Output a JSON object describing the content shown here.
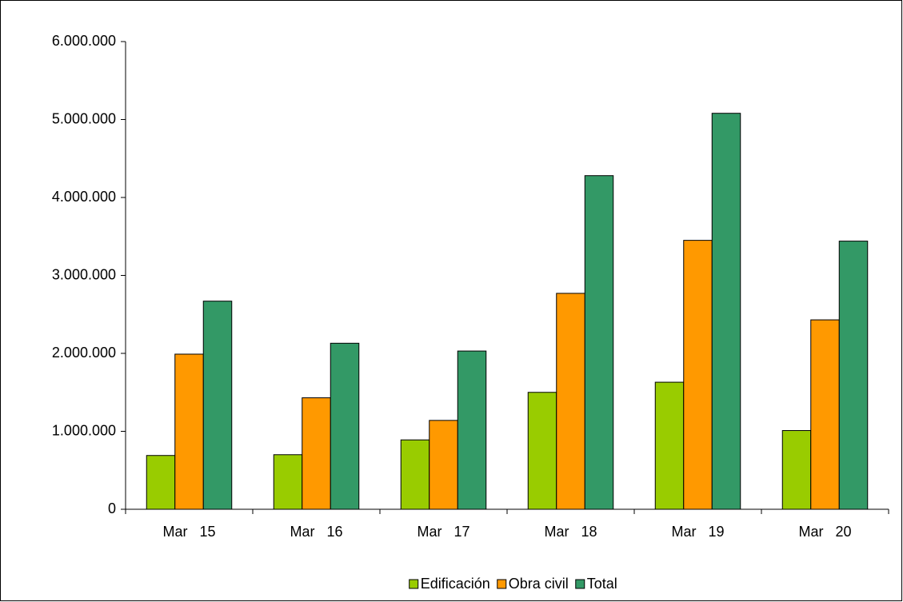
{
  "chart_data": {
    "type": "bar",
    "categories": [
      "Mar   15",
      "Mar   16",
      "Mar   17",
      "Mar   18",
      "Mar   19",
      "Mar   20"
    ],
    "series": [
      {
        "name": "Edificación",
        "color": "#99cc00",
        "values": [
          690000,
          700000,
          890000,
          1500000,
          1630000,
          1010000
        ]
      },
      {
        "name": "Obra civil",
        "color": "#ff9900",
        "values": [
          1990000,
          1430000,
          1140000,
          2770000,
          3450000,
          2430000
        ]
      },
      {
        "name": "Total",
        "color": "#339966",
        "values": [
          2670000,
          2130000,
          2030000,
          4280000,
          5080000,
          3440000
        ]
      }
    ],
    "ylim": [
      0,
      6000000
    ],
    "yticks": [
      0,
      {
        "value": 1000000,
        "label": "1.000.000"
      },
      {
        "value": 2000000,
        "label": "2.000.000"
      },
      {
        "value": 3000000,
        "label": "3.000.000"
      },
      {
        "value": 4000000,
        "label": "4.000.000"
      },
      {
        "value": 5000000,
        "label": "5.000.000"
      },
      {
        "value": 6000000,
        "label": "6.000.000"
      }
    ],
    "grid": false,
    "legend": "bottom"
  }
}
